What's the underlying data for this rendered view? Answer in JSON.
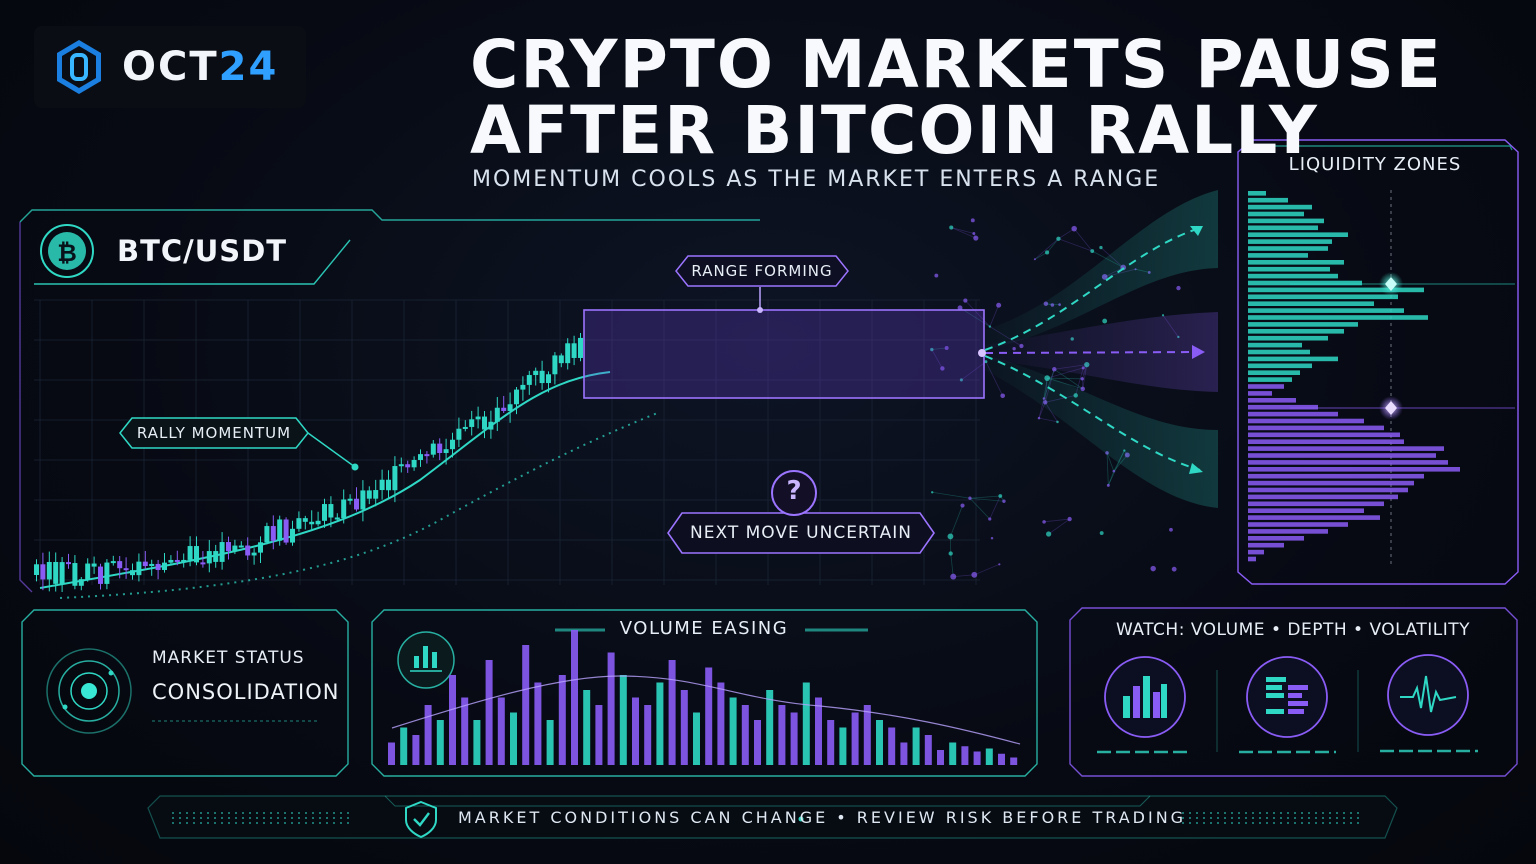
{
  "brand": {
    "name_main": "OCT",
    "name_accent": "24"
  },
  "headline": {
    "line1": "CRYPTO MARKETS PAUSE",
    "line2": "AFTER BITCOIN RALLY",
    "subtitle": "MOMENTUM COOLS AS THE MARKET ENTERS A RANGE"
  },
  "chart": {
    "pair": "BTC/USDT",
    "annotations": {
      "range": "RANGE FORMING",
      "rally": "RALLY MOMENTUM",
      "next": "NEXT MOVE UNCERTAIN",
      "question_mark": "?"
    }
  },
  "liquidity": {
    "title": "LIQUIDITY ZONES"
  },
  "status_card": {
    "label": "MARKET STATUS",
    "value": "CONSOLIDATION"
  },
  "volume_card": {
    "title": "VOLUME EASING"
  },
  "watch_card": {
    "title": "WATCH: VOLUME • DEPTH • VOLATILITY",
    "icons": [
      "volume-bars-icon",
      "order-depth-icon",
      "volatility-pulse-icon"
    ]
  },
  "footer": {
    "disclaimer": "MARKET CONDITIONS CAN CHANGE  •  REVIEW RISK BEFORE TRADING"
  },
  "colors": {
    "teal": "#2fd8c4",
    "purple": "#8a5cf6",
    "accent_blue": "#2fa0ff",
    "background": "#06080f"
  }
}
